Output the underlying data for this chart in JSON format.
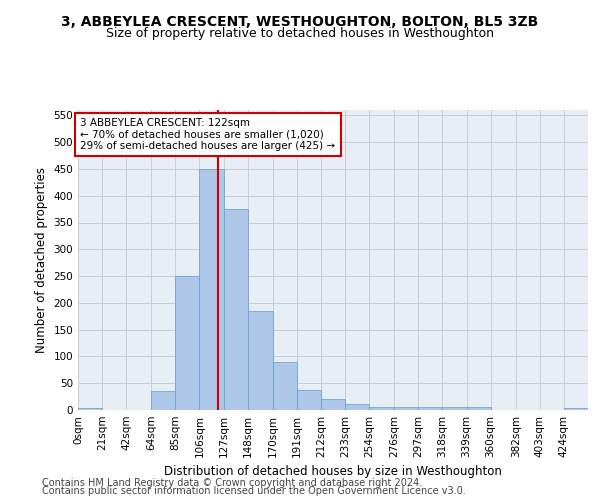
{
  "title_line1": "3, ABBEYLEA CRESCENT, WESTHOUGHTON, BOLTON, BL5 3ZB",
  "title_line2": "Size of property relative to detached houses in Westhoughton",
  "xlabel": "Distribution of detached houses by size in Westhoughton",
  "ylabel": "Number of detached properties",
  "footer_line1": "Contains HM Land Registry data © Crown copyright and database right 2024.",
  "footer_line2": "Contains public sector information licensed under the Open Government Licence v3.0.",
  "annotation_title": "3 ABBEYLEA CRESCENT: 122sqm",
  "annotation_line1": "← 70% of detached houses are smaller (1,020)",
  "annotation_line2": "29% of semi-detached houses are larger (425) →",
  "property_line_x": 122,
  "bin_edges": [
    0,
    21,
    42,
    64,
    85,
    106,
    127,
    148,
    170,
    191,
    212,
    233,
    254,
    276,
    297,
    318,
    339,
    360,
    382,
    403,
    424,
    445
  ],
  "bar_heights": [
    3,
    0,
    0,
    35,
    250,
    450,
    375,
    185,
    90,
    38,
    20,
    12,
    6,
    6,
    5,
    6,
    5,
    0,
    0,
    0,
    3
  ],
  "bar_color": "#aec6e8",
  "bar_edgecolor": "#5a9fd4",
  "vline_color": "#cc0000",
  "annotation_box_edgecolor": "#cc0000",
  "ylim": [
    0,
    560
  ],
  "yticks": [
    0,
    50,
    100,
    150,
    200,
    250,
    300,
    350,
    400,
    450,
    500,
    550
  ],
  "background_color": "#ffffff",
  "ax_background_color": "#e8eef5",
  "grid_color": "#cccccc",
  "title_fontsize": 10,
  "subtitle_fontsize": 9,
  "axis_label_fontsize": 8.5,
  "tick_fontsize": 7.5,
  "annotation_fontsize": 7.5,
  "footer_fontsize": 7
}
